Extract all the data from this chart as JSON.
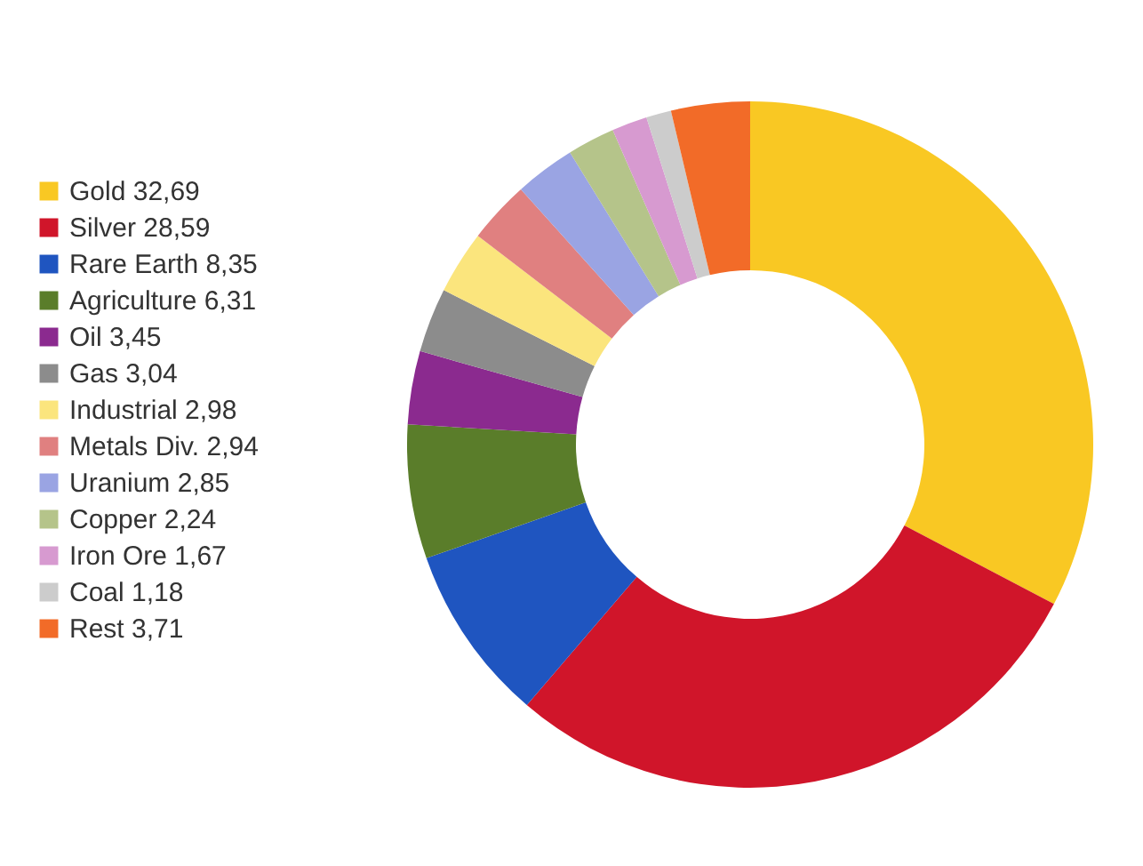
{
  "chart_data": {
    "type": "donut",
    "legend": "left",
    "categories": [
      "Gold 32,69",
      "Silver 28,59",
      "Rare Earth 8,35",
      "Agriculture 6,31",
      "Oil 3,45",
      "Gas 3,04",
      "Industrial 2,98",
      "Metals Div. 2,94",
      "Uranium 2,85",
      "Copper 2,24",
      "Iron Ore 1,67",
      "Coal 1,18",
      "Rest 3,71"
    ],
    "values": [
      32.69,
      28.59,
      8.35,
      6.31,
      3.45,
      3.04,
      2.98,
      2.94,
      2.85,
      2.24,
      1.67,
      1.18,
      3.71
    ],
    "colors": [
      "#f9c823",
      "#d0152a",
      "#1f55c0",
      "#5a7d2a",
      "#8b2a8f",
      "#8c8c8c",
      "#fbe57d",
      "#e08080",
      "#9aa4e3",
      "#b5c48a",
      "#d79ad0",
      "#cccccc",
      "#f26b28"
    ]
  }
}
